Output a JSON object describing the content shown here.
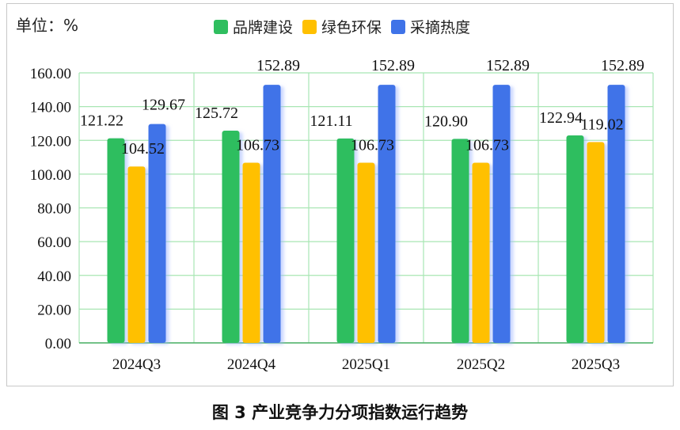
{
  "unit_label": "单位：%",
  "caption": "图 3 产业竞争力分项指数运行趋势",
  "colors": {
    "brand": "#2fbe5f",
    "green_env": "#ffc000",
    "heat": "#3f73e8",
    "grid": "#a8e6b3"
  },
  "chart_data": {
    "type": "bar",
    "categories": [
      "2024Q3",
      "2024Q4",
      "2025Q1",
      "2025Q2",
      "2025Q3"
    ],
    "series": [
      {
        "name": "品牌建设",
        "values": [
          121.22,
          125.72,
          121.11,
          120.9,
          122.94
        ]
      },
      {
        "name": "绿色环保",
        "values": [
          104.52,
          106.73,
          106.73,
          106.73,
          119.02
        ]
      },
      {
        "name": "采摘热度",
        "values": [
          129.67,
          152.89,
          152.89,
          152.89,
          152.89
        ]
      }
    ],
    "ylim": [
      0,
      160
    ],
    "yticks": [
      "0.00",
      "20.00",
      "40.00",
      "60.00",
      "80.00",
      "100.00",
      "120.00",
      "140.00",
      "160.00"
    ],
    "value_labels": [
      [
        "121.22",
        "125.72",
        "121.11",
        "120.90",
        "122.94"
      ],
      [
        "104.52",
        "106.73",
        "106.73",
        "106.73",
        "119.02"
      ],
      [
        "129.67",
        "152.89",
        "152.89",
        "152.89",
        "152.89"
      ]
    ],
    "grid": true,
    "legend_position": "top"
  }
}
